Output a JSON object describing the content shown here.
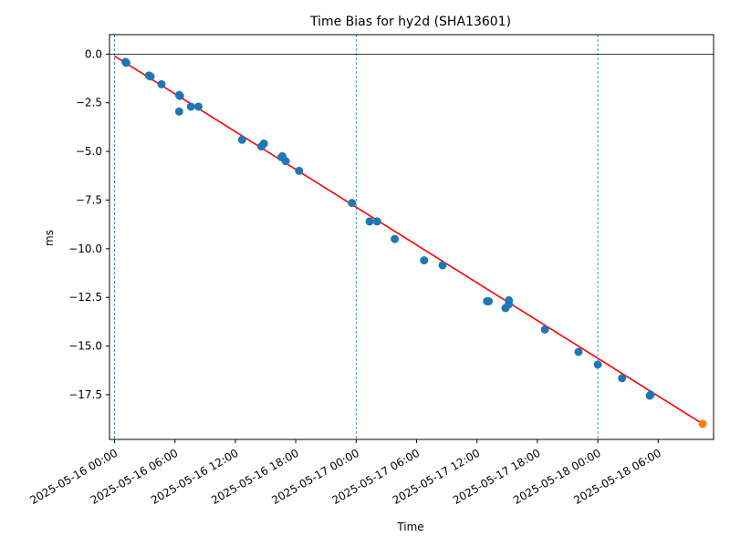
{
  "chart_data": {
    "type": "scatter",
    "title": "Time Bias for hy2d (SHA13601)",
    "xlabel": "Time",
    "ylabel": "ms",
    "x_axis_type": "datetime",
    "xlim": [
      "2025-05-15 23:30",
      "2025-05-18 11:30"
    ],
    "ylim": [
      -19.8,
      1.0
    ],
    "xticks": [
      {
        "value": "2025-05-16 00:00",
        "label": "2025-05-16 00:00"
      },
      {
        "value": "2025-05-16 06:00",
        "label": "2025-05-16 06:00"
      },
      {
        "value": "2025-05-16 12:00",
        "label": "2025-05-16 12:00"
      },
      {
        "value": "2025-05-16 18:00",
        "label": "2025-05-16 18:00"
      },
      {
        "value": "2025-05-17 00:00",
        "label": "2025-05-17 00:00"
      },
      {
        "value": "2025-05-17 06:00",
        "label": "2025-05-17 06:00"
      },
      {
        "value": "2025-05-17 12:00",
        "label": "2025-05-17 12:00"
      },
      {
        "value": "2025-05-17 18:00",
        "label": "2025-05-17 18:00"
      },
      {
        "value": "2025-05-18 00:00",
        "label": "2025-05-18 00:00"
      },
      {
        "value": "2025-05-18 06:00",
        "label": "2025-05-18 06:00"
      }
    ],
    "yticks": [
      {
        "value": 0.0,
        "label": "0.0"
      },
      {
        "value": -2.5,
        "label": "−2.5"
      },
      {
        "value": -5.0,
        "label": "−5.0"
      },
      {
        "value": -7.5,
        "label": "−7.5"
      },
      {
        "value": -10.0,
        "label": "−10.0"
      },
      {
        "value": -12.5,
        "label": "−12.5"
      },
      {
        "value": -15.0,
        "label": "−15.0"
      },
      {
        "value": -17.5,
        "label": "−17.5"
      }
    ],
    "vertical_reference_lines": [
      "2025-05-16 00:00",
      "2025-05-17 00:00",
      "2025-05-18 00:00"
    ],
    "horizontal_reference_line": 0.0,
    "grid": false,
    "series": [
      {
        "kind": "scatter",
        "color": "#1f77b4",
        "points": [
          {
            "x": "2025-05-16 01:05",
            "y": -0.4
          },
          {
            "x": "2025-05-16 01:10",
            "y": -0.45
          },
          {
            "x": "2025-05-16 03:25",
            "y": -1.1
          },
          {
            "x": "2025-05-16 03:35",
            "y": -1.15
          },
          {
            "x": "2025-05-16 04:40",
            "y": -1.55
          },
          {
            "x": "2025-05-16 06:25",
            "y": -2.1
          },
          {
            "x": "2025-05-16 06:30",
            "y": -2.15
          },
          {
            "x": "2025-05-16 06:25",
            "y": -2.95
          },
          {
            "x": "2025-05-16 07:35",
            "y": -2.7
          },
          {
            "x": "2025-05-16 08:20",
            "y": -2.7
          },
          {
            "x": "2025-05-16 12:40",
            "y": -4.4
          },
          {
            "x": "2025-05-16 14:35",
            "y": -4.75
          },
          {
            "x": "2025-05-16 14:50",
            "y": -4.6
          },
          {
            "x": "2025-05-16 16:35",
            "y": -5.3
          },
          {
            "x": "2025-05-16 16:40",
            "y": -5.25
          },
          {
            "x": "2025-05-16 17:00",
            "y": -5.5
          },
          {
            "x": "2025-05-16 18:20",
            "y": -6.0
          },
          {
            "x": "2025-05-16 23:35",
            "y": -7.65
          },
          {
            "x": "2025-05-17 01:20",
            "y": -8.6
          },
          {
            "x": "2025-05-17 02:05",
            "y": -8.6
          },
          {
            "x": "2025-05-17 03:50",
            "y": -9.5
          },
          {
            "x": "2025-05-17 06:45",
            "y": -10.6
          },
          {
            "x": "2025-05-17 08:35",
            "y": -10.85
          },
          {
            "x": "2025-05-17 13:00",
            "y": -12.7
          },
          {
            "x": "2025-05-17 13:10",
            "y": -12.7
          },
          {
            "x": "2025-05-17 14:50",
            "y": -13.05
          },
          {
            "x": "2025-05-17 15:10",
            "y": -12.65
          },
          {
            "x": "2025-05-17 15:10",
            "y": -12.85
          },
          {
            "x": "2025-05-17 18:45",
            "y": -14.15
          },
          {
            "x": "2025-05-17 22:05",
            "y": -15.3
          },
          {
            "x": "2025-05-18 00:00",
            "y": -15.95
          },
          {
            "x": "2025-05-18 02:25",
            "y": -16.65
          },
          {
            "x": "2025-05-18 05:10",
            "y": -17.55
          },
          {
            "x": "2025-05-18 05:15",
            "y": -17.5
          }
        ]
      },
      {
        "kind": "scatter",
        "color": "#ff7f0e",
        "points": [
          {
            "x": "2025-05-18 10:25",
            "y": -19.0
          }
        ]
      },
      {
        "kind": "line",
        "color": "#ff0000",
        "points": [
          {
            "x": "2025-05-16 00:00",
            "y": -0.1
          },
          {
            "x": "2025-05-18 10:25",
            "y": -19.0
          }
        ]
      }
    ]
  }
}
